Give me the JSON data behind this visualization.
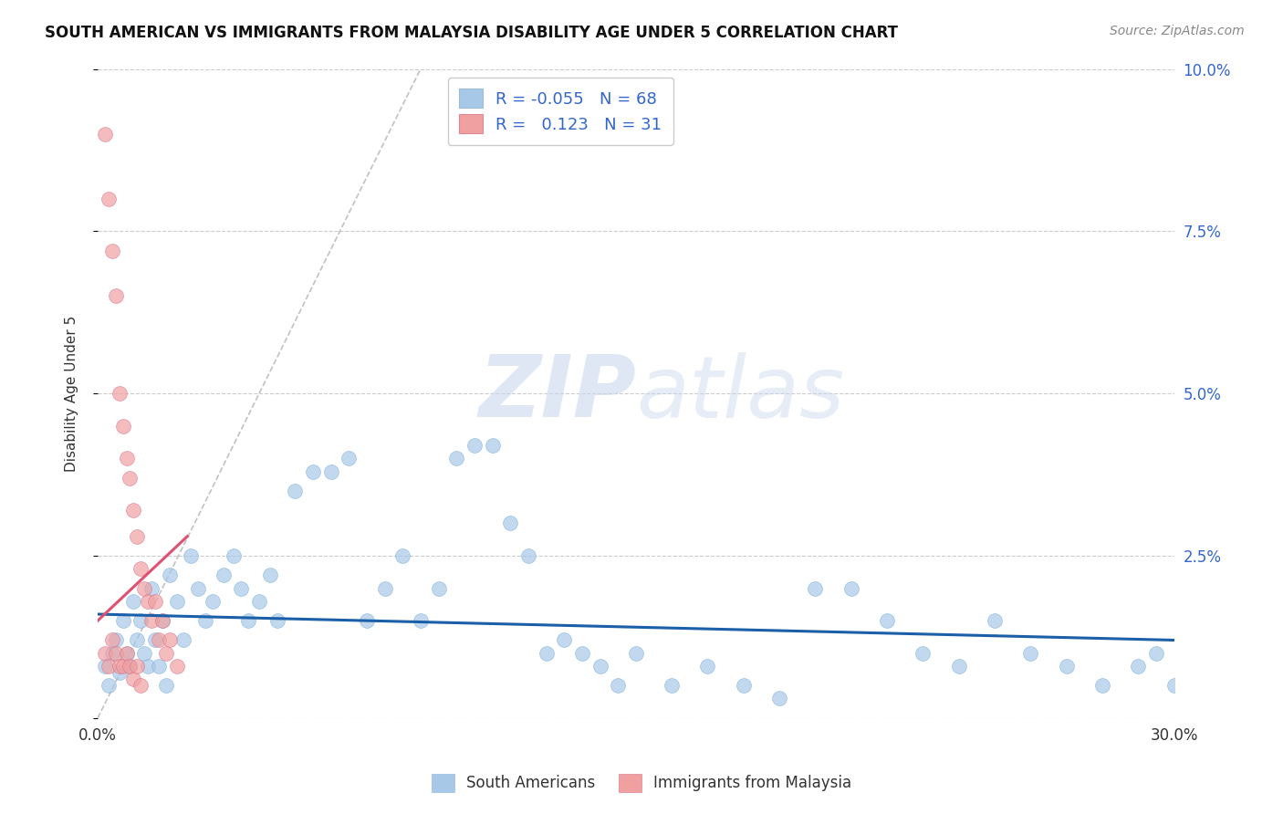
{
  "title": "SOUTH AMERICAN VS IMMIGRANTS FROM MALAYSIA DISABILITY AGE UNDER 5 CORRELATION CHART",
  "source": "Source: ZipAtlas.com",
  "ylabel": "Disability Age Under 5",
  "xlim": [
    0.0,
    0.3
  ],
  "ylim": [
    0.0,
    0.1
  ],
  "xtick_pos": [
    0.0,
    0.3
  ],
  "xtick_labels": [
    "0.0%",
    "30.0%"
  ],
  "ytick_pos": [
    0.0,
    0.025,
    0.05,
    0.075,
    0.1
  ],
  "ytick_labels_right": [
    "",
    "2.5%",
    "5.0%",
    "7.5%",
    "10.0%"
  ],
  "grid_ticks": [
    0.0,
    0.025,
    0.05,
    0.075,
    0.1
  ],
  "blue_color": "#a8c8e8",
  "pink_color": "#f0a0a0",
  "blue_line_color": "#1a5fa8",
  "pink_line_color": "#e05070",
  "diag_color": "#bbbbbb",
  "legend_R1": "-0.055",
  "legend_N1": "68",
  "legend_R2": "0.123",
  "legend_N2": "31",
  "watermark_zip": "ZIP",
  "watermark_atlas": "atlas",
  "south_american_x": [
    0.002,
    0.003,
    0.004,
    0.005,
    0.006,
    0.007,
    0.008,
    0.009,
    0.01,
    0.011,
    0.012,
    0.013,
    0.014,
    0.015,
    0.016,
    0.017,
    0.018,
    0.019,
    0.02,
    0.022,
    0.024,
    0.026,
    0.028,
    0.03,
    0.032,
    0.035,
    0.038,
    0.04,
    0.042,
    0.045,
    0.048,
    0.05,
    0.055,
    0.06,
    0.065,
    0.07,
    0.075,
    0.08,
    0.085,
    0.09,
    0.095,
    0.1,
    0.105,
    0.11,
    0.115,
    0.12,
    0.125,
    0.13,
    0.135,
    0.14,
    0.145,
    0.15,
    0.16,
    0.17,
    0.18,
    0.19,
    0.2,
    0.21,
    0.22,
    0.23,
    0.24,
    0.25,
    0.26,
    0.27,
    0.28,
    0.29,
    0.295,
    0.3
  ],
  "south_american_y": [
    0.008,
    0.005,
    0.01,
    0.012,
    0.007,
    0.015,
    0.01,
    0.008,
    0.018,
    0.012,
    0.015,
    0.01,
    0.008,
    0.02,
    0.012,
    0.008,
    0.015,
    0.005,
    0.022,
    0.018,
    0.012,
    0.025,
    0.02,
    0.015,
    0.018,
    0.022,
    0.025,
    0.02,
    0.015,
    0.018,
    0.022,
    0.015,
    0.035,
    0.038,
    0.038,
    0.04,
    0.015,
    0.02,
    0.025,
    0.015,
    0.02,
    0.04,
    0.042,
    0.042,
    0.03,
    0.025,
    0.01,
    0.012,
    0.01,
    0.008,
    0.005,
    0.01,
    0.005,
    0.008,
    0.005,
    0.003,
    0.02,
    0.02,
    0.015,
    0.01,
    0.008,
    0.015,
    0.01,
    0.008,
    0.005,
    0.008,
    0.01,
    0.005
  ],
  "malaysia_x": [
    0.002,
    0.003,
    0.004,
    0.005,
    0.006,
    0.007,
    0.008,
    0.009,
    0.01,
    0.011,
    0.012,
    0.013,
    0.014,
    0.015,
    0.016,
    0.017,
    0.018,
    0.019,
    0.02,
    0.022,
    0.002,
    0.003,
    0.004,
    0.005,
    0.006,
    0.007,
    0.008,
    0.009,
    0.01,
    0.011,
    0.012
  ],
  "malaysia_y": [
    0.09,
    0.08,
    0.072,
    0.065,
    0.05,
    0.045,
    0.04,
    0.037,
    0.032,
    0.028,
    0.023,
    0.02,
    0.018,
    0.015,
    0.018,
    0.012,
    0.015,
    0.01,
    0.012,
    0.008,
    0.01,
    0.008,
    0.012,
    0.01,
    0.008,
    0.008,
    0.01,
    0.008,
    0.006,
    0.008,
    0.005
  ],
  "blue_trend_x": [
    0.0,
    0.3
  ],
  "blue_trend_y": [
    0.016,
    0.012
  ],
  "pink_trend_x": [
    0.0,
    0.025
  ],
  "pink_trend_y": [
    0.015,
    0.028
  ]
}
